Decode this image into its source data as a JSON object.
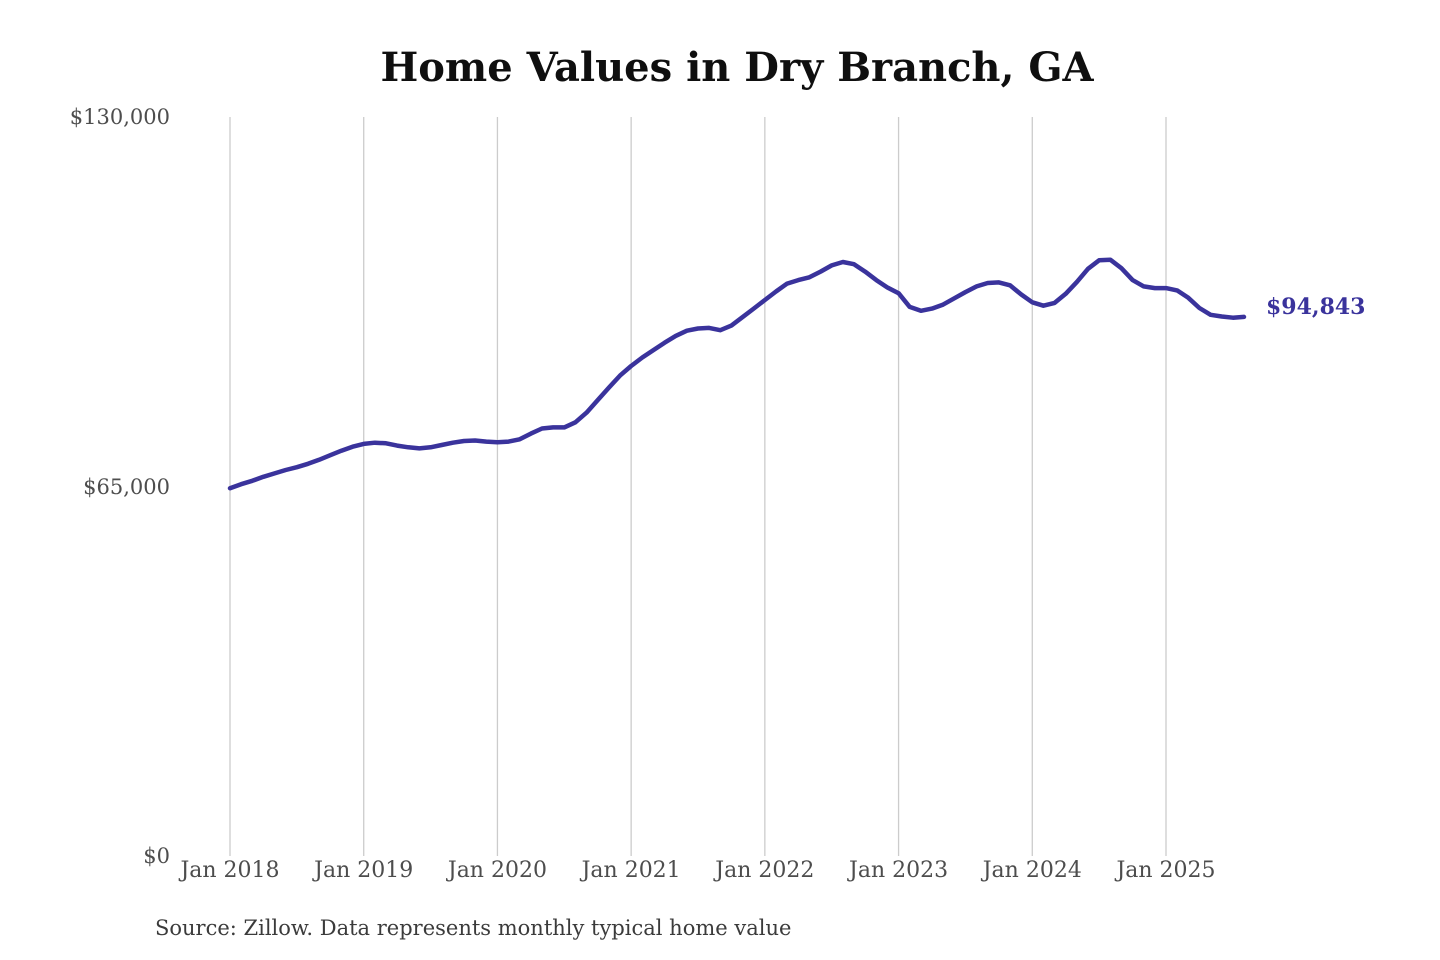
{
  "footer": {
    "source_note": "Source: Zillow. Data represents monthly typical home value"
  },
  "chart_data": {
    "type": "line",
    "title": "Home Values in Dry Branch, GA",
    "x_unit": "month",
    "x_start_label": "Jan 2018",
    "x_end_label": "Aug 2025",
    "x_tick_labels": [
      "Jan 2018",
      "Jan 2019",
      "Jan 2020",
      "Jan 2021",
      "Jan 2022",
      "Jan 2023",
      "Jan 2024",
      "Jan 2025"
    ],
    "y_tick_values": [
      0,
      65000,
      130000
    ],
    "y_tick_labels": [
      "$0",
      "$65,000",
      "$130,000"
    ],
    "ylim": [
      0,
      130000
    ],
    "grid": "vertical-only",
    "legend": "none",
    "line_color": "#3A339C",
    "grid_color": "#cccccc",
    "axis_label_color": "#4d4d4d",
    "end_value": 94843,
    "end_label": "$94,843",
    "series": [
      {
        "name": "Monthly typical home value",
        "values": [
          64700,
          65400,
          66000,
          66700,
          67300,
          67900,
          68400,
          69000,
          69700,
          70500,
          71300,
          72000,
          72500,
          72700,
          72600,
          72200,
          71900,
          71700,
          71900,
          72300,
          72700,
          73000,
          73100,
          72900,
          72800,
          72900,
          73300,
          74300,
          75200,
          75400,
          75400,
          76300,
          78000,
          80200,
          82400,
          84500,
          86200,
          87700,
          89000,
          90300,
          91500,
          92400,
          92800,
          92900,
          92500,
          93300,
          94800,
          96300,
          97800,
          99300,
          100700,
          101300,
          101800,
          102800,
          103900,
          104500,
          104100,
          102800,
          101300,
          100000,
          99000,
          96600,
          95900,
          96300,
          97000,
          98100,
          99200,
          100200,
          100800,
          100900,
          100400,
          98800,
          97400,
          96800,
          97300,
          98900,
          101000,
          103300,
          104800,
          104900,
          103400,
          101300,
          100200,
          99900,
          99900,
          99500,
          98200,
          96400,
          95200,
          94900,
          94700,
          94843
        ]
      }
    ]
  }
}
